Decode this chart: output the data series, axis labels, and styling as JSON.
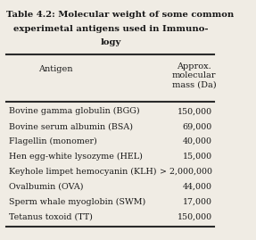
{
  "title_line1": "Table 4.2: Molecular weight of some common",
  "title_line2": "experimetal antigens used in Immuno-",
  "title_line3": "logy",
  "col1_header": "Antigen",
  "col2_header": "Approx.\nmolecular\nmass (Da)",
  "rows": [
    [
      "Bovine gamma globulin (BGG)",
      "150,000"
    ],
    [
      "Bovine serum albumin (BSA)",
      "69,000"
    ],
    [
      "Flagellin (monomer)",
      "40,000"
    ],
    [
      "Hen egg-white lysozyme (HEL)",
      "15,000"
    ],
    [
      "Keyhole limpet hemocyanin (KLH)",
      "> 2,000,000"
    ],
    [
      "Ovalbumin (OVA)",
      "44,000"
    ],
    [
      "Sperm whale myoglobin (SWM)",
      "17,000"
    ],
    [
      "Tetanus toxoid (TT)",
      "150,000"
    ]
  ],
  "bg_color": "#f0ece4",
  "text_color": "#1a1a1a",
  "line_color": "#2a2a2a",
  "font_size_title": 7.2,
  "font_size_header": 7.0,
  "font_size_body": 6.8
}
